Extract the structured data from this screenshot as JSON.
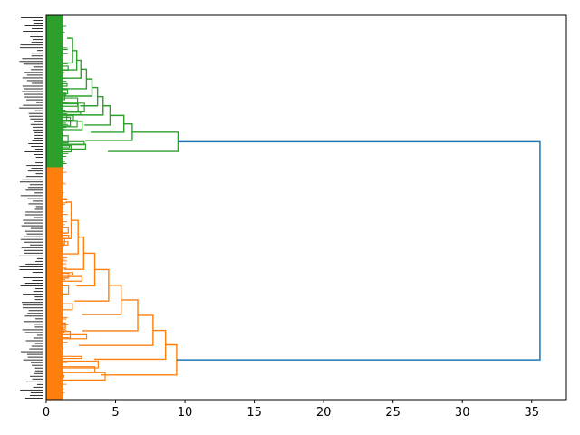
{
  "chart_data": {
    "type": "dendrogram",
    "orientation": "left",
    "title": "",
    "xlabel": "",
    "ylabel": "",
    "xlim": [
      0,
      37.5
    ],
    "x_ticks": [
      0,
      5,
      10,
      15,
      20,
      25,
      30,
      35
    ],
    "x_tick_labels": [
      "0",
      "5",
      "10",
      "15",
      "20",
      "25",
      "30",
      "35"
    ],
    "grid": false,
    "colors": {
      "above_threshold": "#1f77b4",
      "cluster_1": "#2ca02c",
      "cluster_2": "#ff7f0e"
    },
    "clusters": [
      {
        "color": "cluster_1",
        "leaf_share": 0.395,
        "merge_heights": [
          1.5,
          1.9,
          2.2,
          2.5,
          2.9,
          3.3,
          3.7,
          4.1,
          4.6,
          5.6,
          6.2,
          9.5
        ]
      },
      {
        "color": "cluster_2",
        "leaf_share": 0.605,
        "merge_heights": [
          1.4,
          1.8,
          2.3,
          2.7,
          3.5,
          4.5,
          5.4,
          6.6,
          7.7,
          8.6,
          9.4
        ]
      }
    ],
    "root_merge_height": 35.6
  }
}
